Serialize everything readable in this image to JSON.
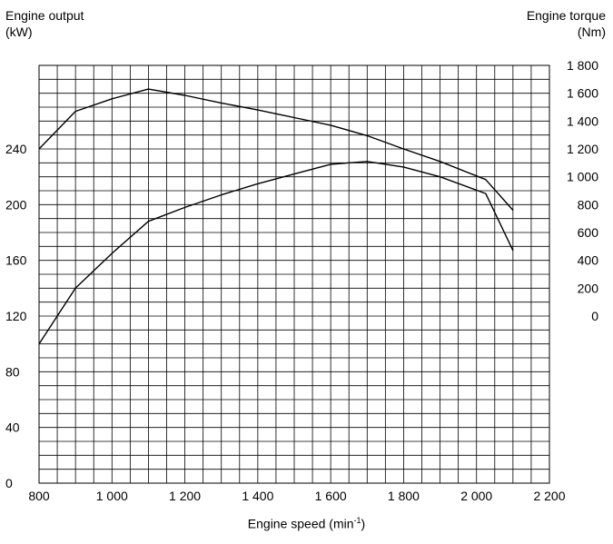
{
  "chart_data": {
    "type": "line",
    "x_axis": {
      "label_prefix": "Engine speed (min",
      "label_exp": "-1",
      "label_suffix": ")",
      "range": [
        800,
        2200
      ],
      "ticks": [
        800,
        1000,
        1200,
        1400,
        1600,
        1800,
        2000,
        2200
      ],
      "tick_labels": [
        "800",
        "1 000",
        "1 200",
        "1 400",
        "1 600",
        "1 800",
        "2 000",
        "2 200"
      ]
    },
    "left_axis": {
      "label_line1": "Engine output",
      "label_line2": "(kW)",
      "ticks": [
        0,
        40,
        80,
        120,
        160,
        200,
        240
      ],
      "tick_labels": [
        "0",
        "40",
        "80",
        "120",
        "160",
        "200",
        "240"
      ]
    },
    "right_axis": {
      "label_line1": "Engine torque",
      "label_line2": "(Nm)",
      "ticks": [
        0,
        200,
        400,
        600,
        800,
        1000,
        1200,
        1400,
        1600,
        1800
      ],
      "tick_labels": [
        "0",
        "200",
        "400",
        "600",
        "800",
        "1 000",
        "1 200",
        "1 400",
        "1 600",
        "1 800"
      ]
    },
    "grid": true,
    "series": [
      {
        "axis": "left",
        "x": [
          800,
          900,
          1000,
          1100,
          1200,
          1300,
          1400,
          1500,
          1600,
          1700,
          1800,
          1900,
          2025,
          2100
        ],
        "y": [
          100,
          140,
          165,
          188,
          198,
          207,
          215,
          222,
          229,
          231,
          227,
          220,
          208,
          167
        ]
      },
      {
        "axis": "right",
        "x": [
          800,
          900,
          1000,
          1100,
          1200,
          1300,
          1400,
          1500,
          1600,
          1700,
          1800,
          1900,
          2025,
          2100
        ],
        "y": [
          1200,
          1470,
          1560,
          1630,
          1585,
          1530,
          1480,
          1425,
          1370,
          1295,
          1200,
          1110,
          980,
          760
        ]
      }
    ]
  }
}
